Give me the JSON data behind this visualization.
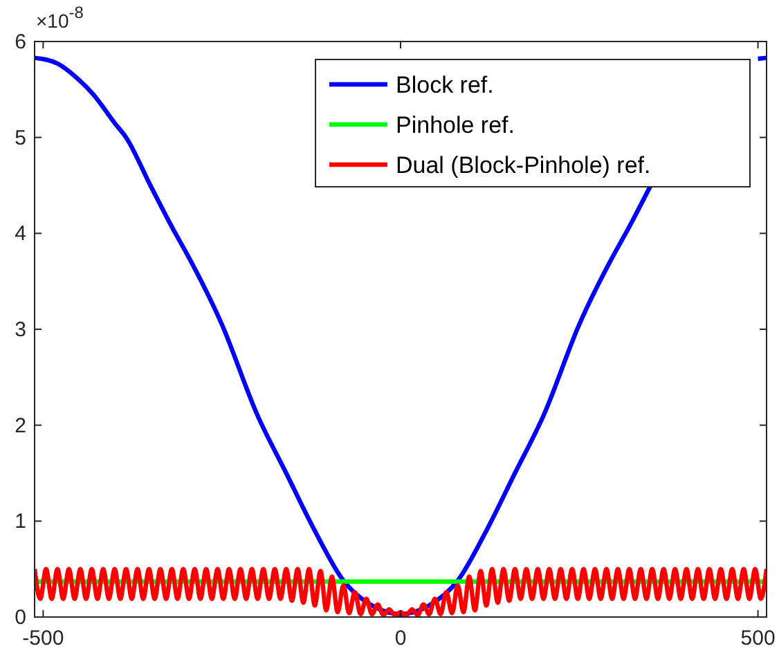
{
  "chart_data": {
    "type": "line",
    "xlim": [
      -512,
      512
    ],
    "ylim": [
      0,
      6
    ],
    "xticks": [
      -500,
      0,
      500
    ],
    "yticks": [
      0,
      1,
      2,
      3,
      4,
      5,
      6
    ],
    "grid": false,
    "legend": "top right",
    "line_style": "solid",
    "marker": "none",
    "annotations": [
      "×10$^{-8}$"
    ],
    "series": [
      {
        "name": "Block ref.",
        "color": "#0000ff",
        "x": [
          -512,
          -480,
          -450,
          -430,
          -400,
          -384,
          -350,
          -315,
          -300,
          -250,
          -200,
          -160,
          -120,
          -80,
          -40,
          0,
          40,
          80,
          120,
          160,
          200,
          250,
          300,
          315,
          350,
          384,
          400,
          430,
          450,
          480,
          500,
          512
        ],
        "values": [
          5.83,
          5.77,
          5.6,
          5.45,
          5.15,
          5.0,
          4.5,
          4.0,
          3.8,
          3.05,
          2.1,
          1.5,
          0.9,
          0.38,
          0.12,
          0.03,
          0.12,
          0.38,
          0.9,
          1.5,
          2.1,
          3.05,
          3.8,
          4.0,
          4.5,
          null,
          null,
          null,
          null,
          null,
          5.82,
          5.83
        ]
      },
      {
        "name": "Pinhole ref.",
        "color": "#00ff00",
        "x": [
          -512,
          512
        ],
        "values": [
          0.37,
          0.37
        ]
      },
      {
        "name": "Dual (Block-Pinhole) ref.",
        "color": "#ff0000",
        "x": [
          -512,
          -504,
          -496,
          -488,
          -480,
          -472,
          -464,
          -456,
          -448,
          -440,
          -432,
          -424,
          -416,
          -408,
          -400,
          -392,
          -384,
          -376,
          -368,
          -360,
          -352,
          -344,
          -336,
          -328,
          -320,
          -312,
          -304,
          -296,
          -288,
          -280,
          -272,
          -264,
          -256,
          -248,
          -240,
          -232,
          -224,
          -216,
          -208,
          -200,
          -192,
          -184,
          -176,
          -168,
          -160,
          -152,
          -144,
          -136,
          -128,
          -120,
          -112,
          -104,
          -96,
          -88,
          -80,
          -72,
          -64,
          -56,
          -48,
          -40,
          -32,
          -24,
          -16,
          -8,
          0,
          8,
          16,
          24,
          32,
          40,
          48,
          56,
          64,
          72,
          80,
          88,
          96,
          104,
          112,
          120,
          128,
          136,
          144,
          152,
          160,
          168,
          176,
          184,
          192,
          200,
          208,
          216,
          224,
          232,
          240,
          248,
          256,
          264,
          272,
          280,
          288,
          296,
          304,
          312,
          320,
          328,
          336,
          344,
          352,
          360,
          368,
          376,
          384,
          392,
          400,
          408,
          416,
          424,
          432,
          440,
          448,
          456,
          464,
          472,
          480,
          488,
          496,
          504,
          512
        ],
        "values": [
          0.5,
          0.19,
          0.5,
          0.19,
          0.5,
          0.19,
          0.5,
          0.19,
          0.5,
          0.19,
          0.5,
          0.19,
          0.5,
          0.19,
          0.5,
          0.19,
          0.5,
          0.19,
          0.5,
          0.19,
          0.5,
          0.19,
          0.5,
          0.19,
          0.5,
          0.19,
          0.5,
          0.19,
          0.5,
          0.19,
          0.5,
          0.19,
          0.5,
          0.19,
          0.5,
          0.19,
          0.5,
          0.19,
          0.5,
          0.19,
          0.5,
          0.19,
          0.5,
          0.19,
          0.5,
          0.17,
          0.5,
          0.15,
          0.5,
          0.12,
          0.48,
          0.07,
          0.42,
          0.05,
          0.33,
          0.04,
          0.26,
          0.03,
          0.19,
          0.03,
          0.13,
          0.02,
          0.08,
          0.02,
          0.05,
          0.02,
          0.08,
          0.02,
          0.13,
          0.03,
          0.19,
          0.03,
          0.26,
          0.04,
          0.33,
          0.05,
          0.42,
          0.07,
          0.48,
          0.12,
          0.5,
          0.15,
          0.5,
          0.17,
          0.5,
          0.19,
          0.5,
          0.19,
          0.5,
          0.19,
          0.5,
          0.19,
          0.5,
          0.19,
          0.5,
          0.19,
          0.5,
          0.19,
          0.5,
          0.19,
          0.5,
          0.19,
          0.5,
          0.19,
          0.5,
          0.19,
          0.5,
          0.19,
          0.5,
          0.19,
          0.5,
          0.19,
          0.5,
          0.19,
          0.5,
          0.19,
          0.5,
          0.19,
          0.5,
          0.19,
          0.5,
          0.19,
          0.5,
          0.19,
          0.5,
          0.19,
          0.5,
          0.19,
          0.5
        ]
      }
    ]
  }
}
